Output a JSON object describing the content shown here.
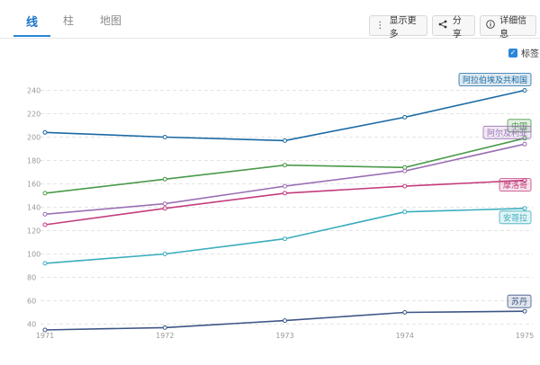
{
  "tabs": [
    {
      "label": "线",
      "active": true
    },
    {
      "label": "柱",
      "active": false
    },
    {
      "label": "地图",
      "active": false
    }
  ],
  "toolbar": {
    "show_more": "显示更多",
    "share": "分享",
    "details": "详细信息"
  },
  "label_toggle": {
    "label": "标签",
    "checked": true
  },
  "chart_data": {
    "type": "line",
    "x": [
      "1971",
      "1972",
      "1973",
      "1974",
      "1975"
    ],
    "y_ticks": [
      40,
      60,
      80,
      100,
      120,
      140,
      160,
      180,
      200,
      220,
      240
    ],
    "ylim": [
      30,
      248
    ],
    "grid": true,
    "series": [
      {
        "name": "阿拉伯埃及共和国",
        "color": "#1a6aa3",
        "values": [
          204,
          200,
          197,
          217,
          240
        ]
      },
      {
        "name": "中国",
        "color": "#4a9a4a",
        "values": [
          152,
          164,
          176,
          174,
          199
        ]
      },
      {
        "name": "阿尔及利亚",
        "color": "#9a70b4",
        "values": [
          134,
          143,
          158,
          171,
          194
        ]
      },
      {
        "name": "摩洛哥",
        "color": "#c43c7c",
        "values": [
          125,
          139,
          152,
          158,
          163
        ]
      },
      {
        "name": "安哥拉",
        "color": "#3badbd",
        "values": [
          92,
          100,
          113,
          136,
          139
        ]
      },
      {
        "name": "苏丹",
        "color": "#3e5586",
        "values": [
          35,
          37,
          43,
          50,
          51
        ]
      }
    ]
  }
}
